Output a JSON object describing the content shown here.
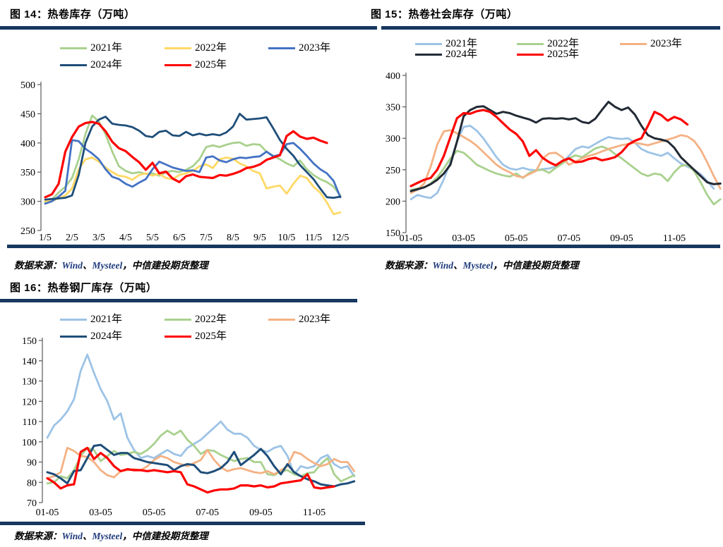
{
  "page": {
    "background": "#FFFFFF",
    "rule_color": "#17375E",
    "source_link_color": "#1F3B7C"
  },
  "source_note": {
    "prefix": "数据来源：",
    "wind": "Wind",
    "sep1": "、",
    "mysteel": "Mysteel",
    "suffix": "，中信建投期货整理"
  },
  "chart_data": [
    {
      "id": "c14",
      "type": "line",
      "title": "图 14：热卷库存（万吨）",
      "xlabel": "",
      "ylabel": "",
      "ylim": [
        250,
        500
      ],
      "yticks": [
        250,
        300,
        350,
        400,
        450,
        500
      ],
      "grid": false,
      "legend_position": "top",
      "xticks": [
        {
          "label": "1/5",
          "m": 0
        },
        {
          "label": "2/5",
          "m": 1
        },
        {
          "label": "3/5",
          "m": 2
        },
        {
          "label": "4/5",
          "m": 3
        },
        {
          "label": "5/5",
          "m": 4
        },
        {
          "label": "6/5",
          "m": 5
        },
        {
          "label": "7/5",
          "m": 6
        },
        {
          "label": "8/5",
          "m": 7
        },
        {
          "label": "9/5",
          "m": 8
        },
        {
          "label": "10/5",
          "m": 9
        },
        {
          "label": "11/5",
          "m": 10
        },
        {
          "label": "12/5",
          "m": 11
        }
      ],
      "series": [
        {
          "name": "2021年",
          "color": "#A9D18E",
          "x0": 0,
          "dx": 0.25,
          "values": [
            298,
            303,
            315,
            325,
            340,
            372,
            415,
            447,
            437,
            415,
            385,
            360,
            352,
            348,
            350,
            347,
            348,
            344,
            350,
            352,
            350,
            354,
            360,
            372,
            393,
            396,
            393,
            397,
            400,
            401,
            395,
            398,
            397,
            385,
            378,
            372,
            365,
            360,
            370,
            355,
            345,
            338,
            333,
            325,
            310
          ]
        },
        {
          "name": "2022年",
          "color": "#FFD966",
          "x0": 0,
          "dx": 0.25,
          "values": [
            300,
            301,
            305,
            310,
            322,
            355,
            372,
            375,
            368,
            358,
            350,
            344,
            342,
            337,
            345,
            348,
            344,
            347,
            340,
            338,
            345,
            348,
            352,
            360,
            363,
            357,
            372,
            375,
            373,
            365,
            360,
            352,
            348,
            322,
            325,
            327,
            313,
            330,
            344,
            340,
            325,
            315,
            298,
            278,
            281
          ]
        },
        {
          "name": "2023年",
          "color": "#4472C4",
          "x0": 0,
          "dx": 0.25,
          "values": [
            296,
            300,
            308,
            318,
            405,
            403,
            390,
            382,
            372,
            355,
            342,
            338,
            330,
            325,
            332,
            338,
            355,
            368,
            363,
            358,
            355,
            352,
            353,
            350,
            375,
            377,
            370,
            367,
            372,
            375,
            374,
            376,
            377,
            385,
            377,
            380,
            398,
            400,
            390,
            378,
            365,
            355,
            348,
            335,
            307
          ]
        },
        {
          "name": "2024年",
          "color": "#1F4E79",
          "x0": 0,
          "dx": 0.25,
          "values": [
            303,
            304,
            305,
            306,
            310,
            345,
            400,
            428,
            440,
            445,
            433,
            431,
            430,
            427,
            421,
            412,
            410,
            419,
            421,
            413,
            412,
            419,
            413,
            416,
            413,
            415,
            413,
            418,
            428,
            450,
            440,
            441,
            442,
            444,
            425,
            405,
            390,
            378,
            362,
            350,
            338,
            322,
            307,
            306,
            308
          ]
        },
        {
          "name": "2025年",
          "color": "#FF0000",
          "width": 3.2,
          "x0": 0,
          "dx": 0.25,
          "values": [
            307,
            312,
            330,
            385,
            410,
            428,
            434,
            436,
            433,
            420,
            402,
            391,
            386,
            376,
            367,
            354,
            366,
            348,
            351,
            339,
            333,
            343,
            346,
            342,
            341,
            340,
            345,
            344,
            347,
            351,
            357,
            359,
            363,
            371,
            375,
            379,
            412,
            420,
            411,
            407,
            409,
            404,
            400
          ]
        }
      ]
    },
    {
      "id": "c15",
      "type": "line",
      "title": "图 15：热卷社会库存（万吨）",
      "xlabel": "",
      "ylabel": "",
      "ylim": [
        150,
        400
      ],
      "yticks": [
        150,
        200,
        250,
        300,
        350,
        400
      ],
      "grid": false,
      "legend_position": "top",
      "xticks": [
        {
          "label": "01-05",
          "m": 0
        },
        {
          "label": "03-05",
          "m": 2
        },
        {
          "label": "05-05",
          "m": 4
        },
        {
          "label": "07-05",
          "m": 6
        },
        {
          "label": "09-05",
          "m": 8
        },
        {
          "label": "11-05",
          "m": 10
        }
      ],
      "series": [
        {
          "name": "2021年",
          "color": "#9DC3E6",
          "x0": 0,
          "dx": 0.25,
          "values": [
            203,
            210,
            207,
            205,
            213,
            235,
            262,
            295,
            318,
            320,
            312,
            300,
            285,
            270,
            258,
            252,
            250,
            253,
            250,
            249,
            251,
            252,
            255,
            262,
            272,
            283,
            287,
            285,
            291,
            297,
            302,
            300,
            299,
            300,
            293,
            283,
            278,
            275,
            272,
            277,
            268,
            260,
            255,
            250,
            243,
            232,
            220
          ]
        },
        {
          "name": "2022年",
          "color": "#A9D18E",
          "x0": 0,
          "dx": 0.25,
          "values": [
            218,
            220,
            222,
            228,
            238,
            252,
            268,
            280,
            277,
            268,
            258,
            253,
            248,
            244,
            241,
            239,
            244,
            237,
            245,
            249,
            250,
            245,
            253,
            260,
            268,
            273,
            270,
            277,
            284,
            287,
            283,
            275,
            268,
            260,
            252,
            244,
            240,
            244,
            242,
            232,
            246,
            256,
            258,
            248,
            230,
            210,
            195,
            203
          ]
        },
        {
          "name": "2023年",
          "color": "#F4B183",
          "x0": 0,
          "dx": 0.25,
          "values": [
            213,
            218,
            228,
            255,
            290,
            311,
            313,
            308,
            302,
            296,
            288,
            278,
            268,
            258,
            251,
            246,
            240,
            238,
            243,
            248,
            268,
            276,
            277,
            270,
            258,
            263,
            268,
            272,
            275,
            279,
            283,
            286,
            289,
            291,
            293,
            291,
            289,
            292,
            295,
            298,
            301,
            305,
            303,
            296,
            282,
            262,
            240,
            220
          ]
        },
        {
          "name": "2024年",
          "color": "#222A35",
          "width": 3.0,
          "x0": 0,
          "dx": 0.25,
          "values": [
            216,
            219,
            222,
            227,
            234,
            244,
            258,
            295,
            335,
            345,
            350,
            351,
            345,
            339,
            342,
            340,
            336,
            333,
            330,
            325,
            331,
            332,
            331,
            332,
            330,
            332,
            326,
            324,
            331,
            345,
            358,
            350,
            345,
            349,
            338,
            320,
            305,
            300,
            298,
            295,
            285,
            270,
            260,
            250,
            240,
            230,
            227,
            228
          ]
        },
        {
          "name": "2025年",
          "color": "#FF0000",
          "width": 3.2,
          "x0": 0,
          "dx": 0.25,
          "values": [
            224,
            229,
            234,
            237,
            250,
            272,
            302,
            332,
            340,
            339,
            343,
            345,
            342,
            334,
            324,
            314,
            307,
            295,
            272,
            281,
            269,
            262,
            257,
            264,
            268,
            262,
            263,
            267,
            269,
            265,
            267,
            270,
            278,
            290,
            296,
            300,
            320,
            342,
            337,
            328,
            334,
            330,
            322
          ]
        }
      ]
    },
    {
      "id": "c16",
      "type": "line",
      "title": "图 16：热卷钢厂库存（万吨）",
      "xlabel": "",
      "ylabel": "",
      "ylim": [
        70,
        150
      ],
      "yticks": [
        70,
        80,
        90,
        100,
        110,
        120,
        130,
        140,
        150
      ],
      "grid": false,
      "legend_position": "top",
      "xticks": [
        {
          "label": "01-05",
          "m": 0
        },
        {
          "label": "03-05",
          "m": 2
        },
        {
          "label": "05-05",
          "m": 4
        },
        {
          "label": "07-05",
          "m": 6
        },
        {
          "label": "09-05",
          "m": 8
        },
        {
          "label": "11-05",
          "m": 10
        }
      ],
      "series": [
        {
          "name": "2021年",
          "color": "#9DC3E6",
          "x0": 0,
          "dx": 0.25,
          "values": [
            102,
            108,
            111,
            115,
            121,
            135,
            143,
            134,
            126,
            120,
            111,
            114,
            102,
            96,
            92,
            93,
            92,
            94,
            96,
            94,
            93,
            97,
            99,
            101,
            104,
            107,
            110,
            106,
            104,
            104,
            102,
            98,
            96,
            95,
            97,
            98,
            93,
            84,
            88,
            87,
            88,
            92,
            93.5,
            89,
            87,
            88,
            83
          ]
        },
        {
          "name": "2022年",
          "color": "#A9D18E",
          "x0": 0,
          "dx": 0.25,
          "values": [
            79.5,
            80,
            83,
            82,
            86,
            93,
            97,
            96,
            90.5,
            93,
            95.5,
            93.5,
            94,
            95,
            94,
            96,
            99,
            103,
            105.5,
            103.5,
            105.5,
            101,
            98,
            94,
            96,
            95.5,
            93.5,
            92,
            90.5,
            91.5,
            92,
            90,
            90,
            84,
            83.5,
            85.5,
            86,
            84,
            83,
            84.5,
            85,
            89,
            92,
            84,
            80.5,
            82,
            83.5
          ]
        },
        {
          "name": "2023年",
          "color": "#F4B183",
          "x0": 0,
          "dx": 0.25,
          "values": [
            82,
            83,
            85,
            97,
            95.5,
            93,
            92.5,
            90,
            86,
            83.5,
            82.5,
            85.5,
            86,
            86.5,
            86,
            88,
            91,
            93,
            92,
            90,
            89,
            88,
            89.5,
            91,
            96,
            91,
            87.5,
            85.5,
            86.5,
            87,
            86,
            85,
            84.5,
            85.5,
            84,
            86,
            88,
            95,
            94,
            91.5,
            89.5,
            88,
            89,
            91.5,
            90,
            90,
            85.5
          ]
        },
        {
          "name": "2024年",
          "color": "#1F4E79",
          "width": 3.0,
          "x0": 0,
          "dx": 0.25,
          "values": [
            85,
            84,
            82,
            79.5,
            85.5,
            86,
            92,
            98,
            98.5,
            96,
            93.5,
            94.5,
            94.5,
            92,
            91,
            90,
            89.5,
            89,
            88.5,
            86,
            88,
            89,
            88.5,
            85,
            84.5,
            85.5,
            87,
            90,
            95,
            88.5,
            91,
            93.5,
            96.5,
            93,
            88,
            84,
            89,
            85,
            83,
            81.5,
            80.5,
            79,
            78.5,
            78,
            79,
            79.5,
            80.5
          ]
        },
        {
          "name": "2025年",
          "color": "#FF0000",
          "width": 3.2,
          "x0": 0,
          "dx": 0.25,
          "values": [
            82,
            80,
            77,
            78.5,
            79,
            95,
            97,
            91.5,
            94.5,
            92,
            88,
            85.5,
            86.5,
            86,
            86,
            85.5,
            86,
            85.5,
            85,
            85.5,
            85,
            79,
            78,
            76.5,
            75,
            76,
            76.5,
            76.5,
            77,
            78.5,
            78.5,
            78,
            78.5,
            77.5,
            78,
            79.5,
            80,
            80.5,
            81,
            84,
            77.5,
            77,
            77.5,
            78
          ]
        }
      ]
    }
  ]
}
